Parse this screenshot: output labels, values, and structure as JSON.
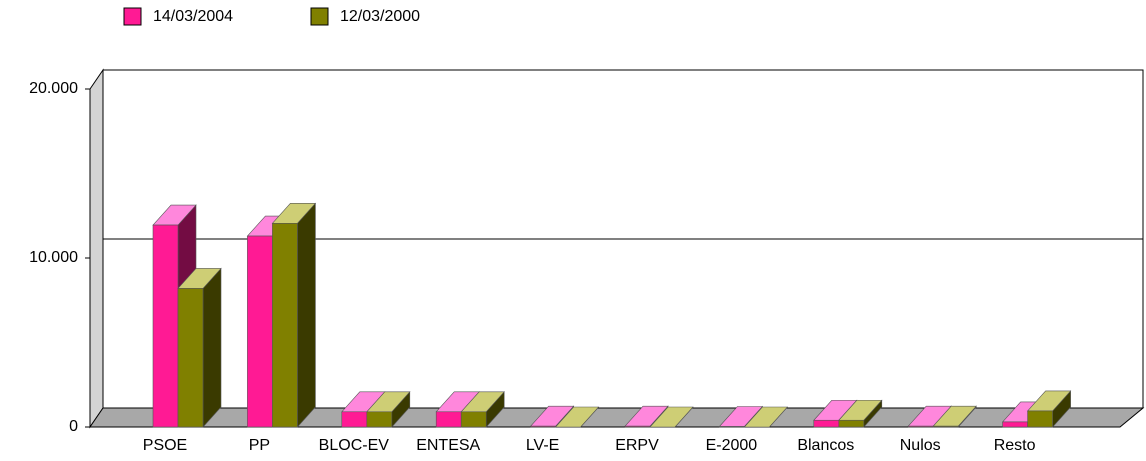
{
  "chart_data": {
    "type": "bar3d",
    "categories": [
      "PSOE",
      "PP",
      "BLOC-EV",
      "ENTESA",
      "LV-E",
      "ERPV",
      "E-2000",
      "Blancos",
      "Nulos",
      "Resto"
    ],
    "series": [
      {
        "name": "14/03/2004",
        "color": "#ff1a94",
        "values": [
          11950,
          11300,
          900,
          900,
          50,
          50,
          30,
          400,
          50,
          300
        ]
      },
      {
        "name": "12/03/2000",
        "color": "#808000",
        "values": [
          8200,
          12050,
          900,
          900,
          0,
          0,
          0,
          400,
          50,
          950
        ]
      }
    ],
    "ylim": [
      0,
      20000
    ],
    "yticks": [
      0,
      {
        "value": 10000,
        "label": "10.000"
      },
      {
        "value": 20000,
        "label": "20.000"
      }
    ],
    "grid": true
  }
}
